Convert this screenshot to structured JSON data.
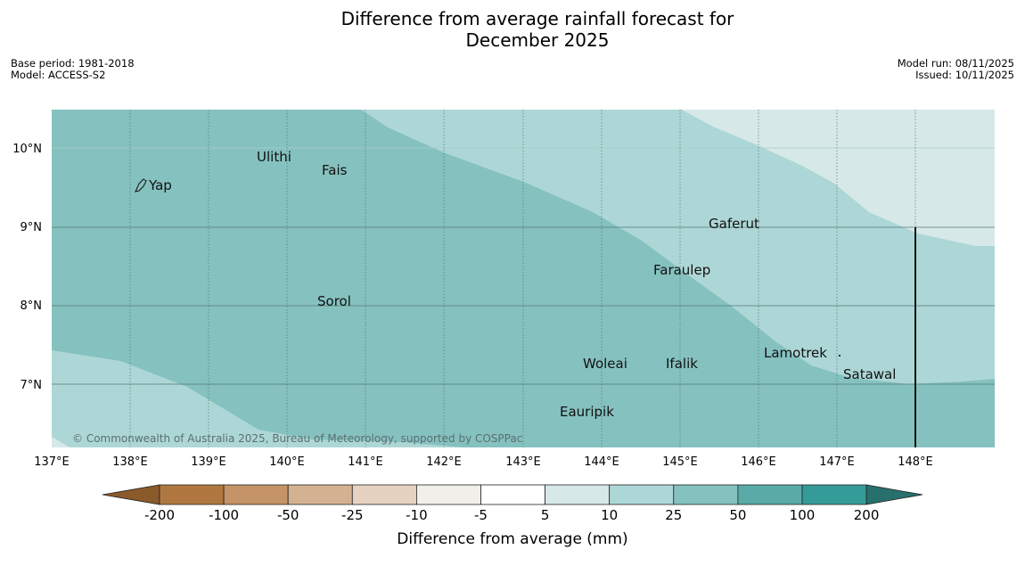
{
  "title_line1": "Difference from average rainfall forecast for",
  "title_line2": "December 2025",
  "meta_left": {
    "base_period": "Base period: 1981-2018",
    "model": "Model: ACCESS-S2"
  },
  "meta_right": {
    "model_run": "Model run: 08/11/2025",
    "issued": "Issued: 10/11/2025"
  },
  "map": {
    "lat_labels": [
      "10°N",
      "9°N",
      "8°N",
      "7°N"
    ],
    "lon_labels": [
      "137°E",
      "138°E",
      "139°E",
      "140°E",
      "141°E",
      "142°E",
      "143°E",
      "144°E",
      "145°E",
      "146°E",
      "147°E",
      "148°E"
    ],
    "places": [
      "Yap",
      "Ulithi",
      "Fais",
      "Gaferut",
      "Faraulep",
      "Sorol",
      "Woleai",
      "Ifalik",
      "Lamotrek",
      "Satawal",
      "Eauripik"
    ],
    "copyright": "© Commonwealth of Australia 2025, Bureau of Meteorology, supported by COSPPac"
  },
  "colorbar": {
    "labels": [
      "-200",
      "-100",
      "-50",
      "-25",
      "-10",
      "-5",
      "5",
      "10",
      "25",
      "50",
      "100",
      "200"
    ],
    "colors": [
      "#8b5a2b",
      "#b07840",
      "#c49468",
      "#d4b191",
      "#e6d2c1",
      "#f1efea",
      "#ffffff",
      "#d6e9e8",
      "#add7d6",
      "#85c1bf",
      "#5aaaa8",
      "#359b98",
      "#27706c"
    ],
    "title": "Difference from average (mm)"
  }
}
